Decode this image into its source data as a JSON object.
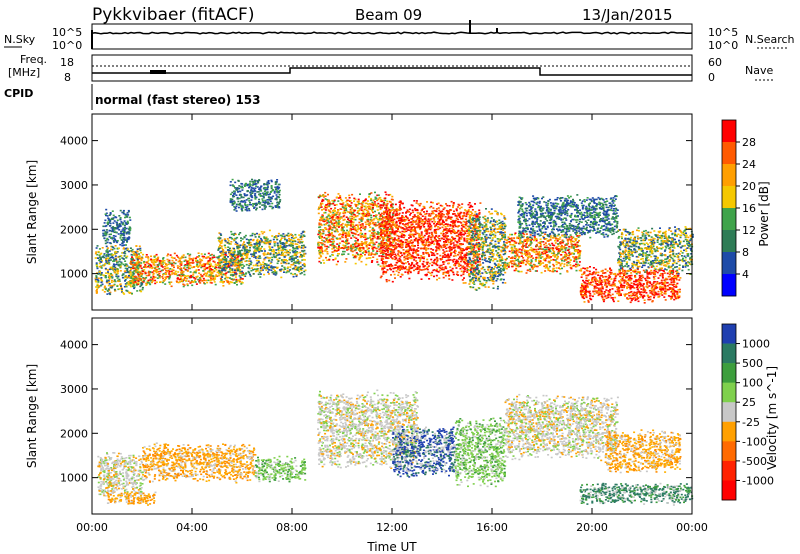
{
  "header": {
    "station": "Pykkvibaer (fitACF)",
    "beam": "Beam 09",
    "date": "13/Jan/2015"
  },
  "strips": {
    "nsky_label": "N.Sky",
    "nsearch_label": "N.Search",
    "freq_label_1": "Freq.",
    "freq_label_2": "[MHz]",
    "nave_label": "Nave",
    "cpid_label": "CPID",
    "cpid_text": "normal (fast stereo) 153",
    "nsky_ticks": [
      "10^5",
      "10^0"
    ],
    "nsearch_ticks": [
      "10^5",
      "10^0"
    ],
    "freq_ticks": [
      "18",
      "8"
    ],
    "nave_ticks": [
      "60",
      "0"
    ]
  },
  "chart_data": [
    {
      "type": "heatmap",
      "name": "power-panel",
      "ylabel": "Slant Range [km]",
      "xlabel": "",
      "x_ticks": [
        "00:00",
        "04:00",
        "08:00",
        "12:00",
        "16:00",
        "20:00",
        "00:00"
      ],
      "y_ticks": [
        1000,
        2000,
        3000,
        4000
      ],
      "ylim": [
        180,
        4600
      ],
      "xlim_hours": [
        0,
        24
      ],
      "colorbar": {
        "label": "Power [dB]",
        "ticks": [
          "28",
          "24",
          "20",
          "16",
          "12",
          "8",
          "4"
        ],
        "colors": [
          "#ff0000",
          "#ff5a00",
          "#ff9f00",
          "#f5c800",
          "#3fa34a",
          "#2e7c56",
          "#1e4ba8",
          "#0000ff"
        ]
      },
      "echo_regions": [
        {
          "t0": 0.1,
          "t1": 2.0,
          "r0": 500,
          "r1": 1700,
          "level": "medium"
        },
        {
          "t0": 0.4,
          "t1": 1.5,
          "r0": 1600,
          "r1": 2500,
          "level": "low"
        },
        {
          "t0": 1.5,
          "t1": 6.0,
          "r0": 700,
          "r1": 1500,
          "level": "high"
        },
        {
          "t0": 5.0,
          "t1": 8.5,
          "r0": 900,
          "r1": 2000,
          "level": "medium"
        },
        {
          "t0": 5.5,
          "t1": 7.5,
          "r0": 2400,
          "r1": 3200,
          "level": "low"
        },
        {
          "t0": 9.0,
          "t1": 12.0,
          "r0": 1200,
          "r1": 2900,
          "level": "high"
        },
        {
          "t0": 11.5,
          "t1": 15.5,
          "r0": 800,
          "r1": 2700,
          "level": "very-high"
        },
        {
          "t0": 15.0,
          "t1": 16.5,
          "r0": 600,
          "r1": 2500,
          "level": "medium"
        },
        {
          "t0": 16.5,
          "t1": 19.5,
          "r0": 1000,
          "r1": 2000,
          "level": "high"
        },
        {
          "t0": 17.0,
          "t1": 21.0,
          "r0": 1800,
          "r1": 2800,
          "level": "low"
        },
        {
          "t0": 19.5,
          "t1": 23.5,
          "r0": 350,
          "r1": 1200,
          "level": "very-high"
        },
        {
          "t0": 21.0,
          "t1": 24.0,
          "r0": 1000,
          "r1": 2100,
          "level": "medium"
        }
      ]
    },
    {
      "type": "heatmap",
      "name": "velocity-panel",
      "ylabel": "Slant Range [km]",
      "xlabel": "Time UT",
      "x_ticks": [
        "00:00",
        "04:00",
        "08:00",
        "12:00",
        "16:00",
        "20:00",
        "00:00"
      ],
      "y_ticks": [
        1000,
        2000,
        3000,
        4000
      ],
      "ylim": [
        180,
        4600
      ],
      "xlim_hours": [
        0,
        24
      ],
      "colorbar": {
        "label": "Velocity [m s^-1]",
        "ticks": [
          "1000",
          "500",
          "100",
          "25",
          "-25",
          "-100",
          "-500",
          "-1000"
        ],
        "colors": [
          "#1f3fb0",
          "#2b7a62",
          "#3d9e3d",
          "#7fd04d",
          "#c8c8c8",
          "#ffa000",
          "#ff6a00",
          "#ff2200",
          "#ff0000"
        ]
      },
      "echo_regions": [
        {
          "t0": 0.2,
          "t1": 2.0,
          "r0": 500,
          "r1": 1600,
          "level": "gray"
        },
        {
          "t0": 0.5,
          "t1": 2.5,
          "r0": 400,
          "r1": 700,
          "level": "orange"
        },
        {
          "t0": 2.0,
          "t1": 6.5,
          "r0": 900,
          "r1": 1800,
          "level": "orange"
        },
        {
          "t0": 6.5,
          "t1": 8.5,
          "r0": 900,
          "r1": 1500,
          "level": "green"
        },
        {
          "t0": 9.0,
          "t1": 13.0,
          "r0": 1200,
          "r1": 3000,
          "level": "gray"
        },
        {
          "t0": 12.0,
          "t1": 14.5,
          "r0": 1000,
          "r1": 2200,
          "level": "blue"
        },
        {
          "t0": 14.5,
          "t1": 16.5,
          "r0": 800,
          "r1": 2400,
          "level": "green"
        },
        {
          "t0": 16.5,
          "t1": 21.0,
          "r0": 1400,
          "r1": 2900,
          "level": "gray"
        },
        {
          "t0": 19.5,
          "t1": 24.0,
          "r0": 400,
          "r1": 900,
          "level": "teal"
        },
        {
          "t0": 20.5,
          "t1": 23.5,
          "r0": 1100,
          "r1": 2100,
          "level": "orange"
        }
      ]
    }
  ]
}
